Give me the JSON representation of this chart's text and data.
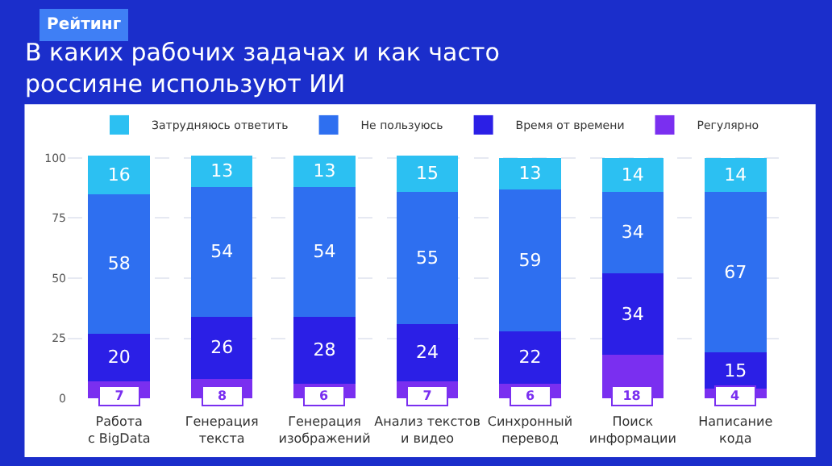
{
  "chart_data": {
    "type": "bar",
    "stacked": true,
    "title": "В каких рабочих задачах и как часто\nроссияне используют ИИ",
    "annotations": [
      "Рейтинг"
    ],
    "categories": [
      "Работа\nс BigData",
      "Генерация\nтекста",
      "Генерация\nизображений",
      "Анализ текстов\nи видео",
      "Синхронный\nперевод",
      "Поиск\nинформации",
      "Написание\nкода"
    ],
    "series": [
      {
        "name": "Регулярно",
        "color": "#7a2ff0",
        "values": [
          7,
          8,
          6,
          7,
          6,
          18,
          4
        ]
      },
      {
        "name": "Время от времени",
        "color": "#2b1fe6",
        "values": [
          20,
          26,
          28,
          24,
          22,
          34,
          15
        ]
      },
      {
        "name": "Не пользуюсь",
        "color": "#2e6ff0",
        "values": [
          58,
          54,
          54,
          55,
          59,
          34,
          67
        ]
      },
      {
        "name": "Затрудняюсь ответить",
        "color": "#2cc0f2",
        "values": [
          16,
          13,
          13,
          15,
          13,
          14,
          14
        ]
      }
    ],
    "ylim": [
      0,
      102
    ],
    "yticks": [
      0,
      25,
      50,
      75,
      100
    ],
    "grid": "y",
    "legend": "top",
    "data_labels": true
  }
}
